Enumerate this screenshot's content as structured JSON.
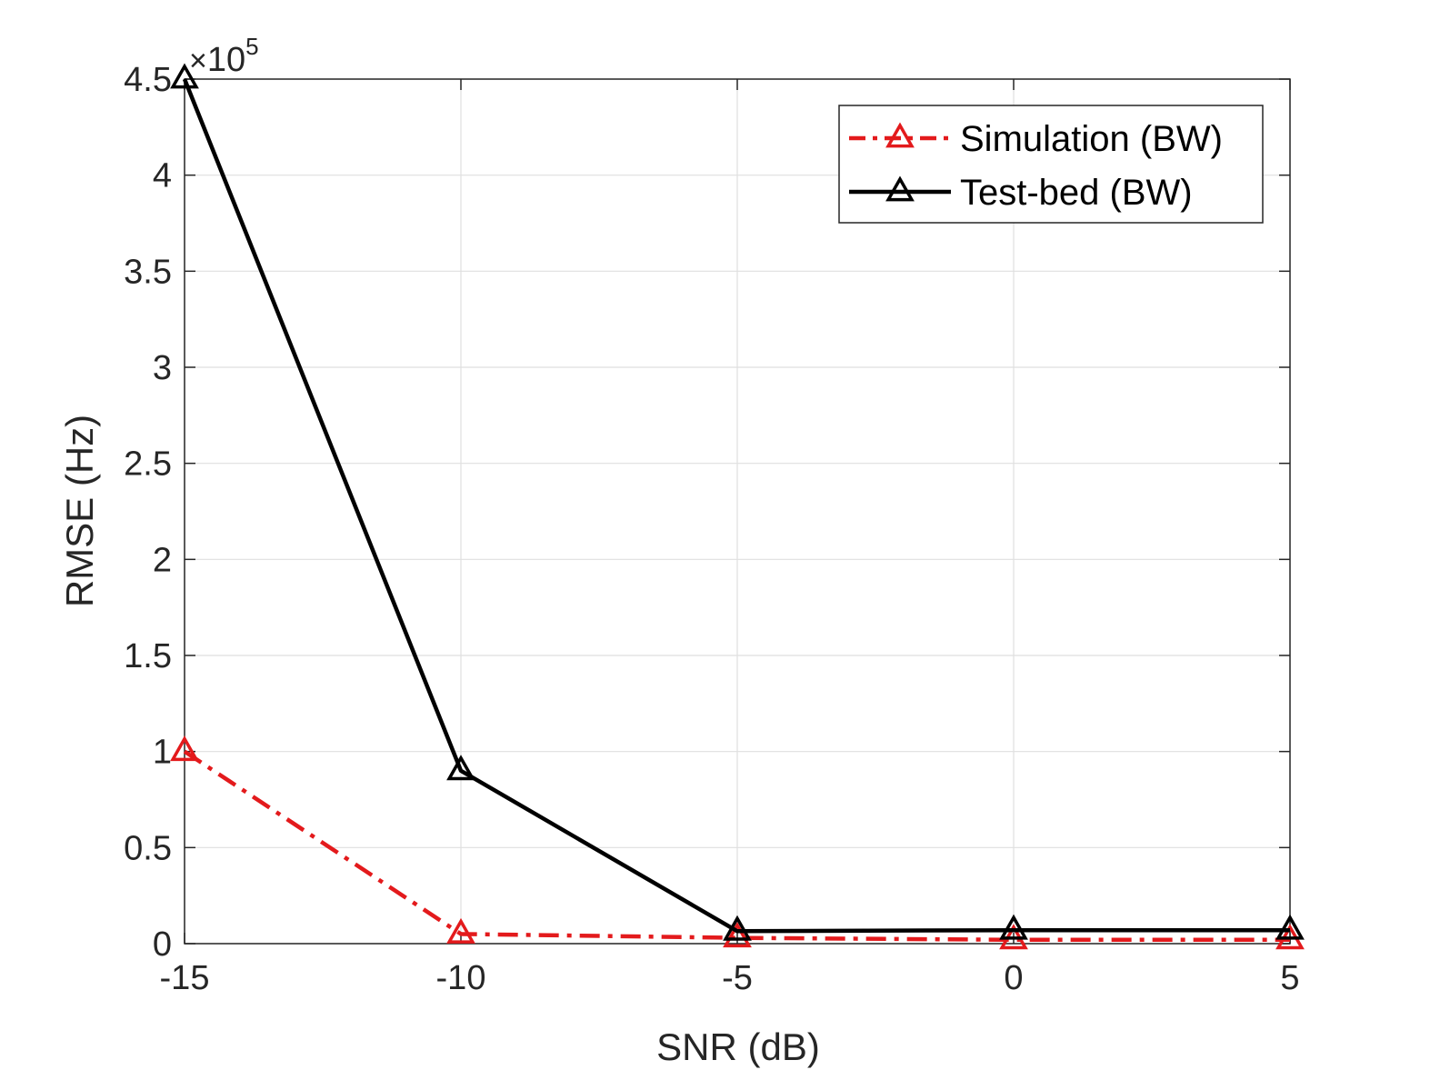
{
  "chart_data": {
    "type": "line",
    "xlabel": "SNR (dB)",
    "ylabel": "RMSE (Hz)",
    "x": [
      -15,
      -10,
      -5,
      0,
      5
    ],
    "xlim": [
      -15,
      5
    ],
    "ylim": [
      0,
      4.5
    ],
    "y_multiplier": {
      "times": "×",
      "base": "10",
      "exponent": "5"
    },
    "xticks": [
      -15,
      -10,
      -5,
      0,
      5
    ],
    "xtick_labels": [
      "-15",
      "-10",
      "-5",
      "0",
      "5"
    ],
    "yticks": [
      0,
      0.5,
      1,
      1.5,
      2,
      2.5,
      3,
      3.5,
      4,
      4.5
    ],
    "ytick_labels": [
      "0",
      "0.5",
      "1",
      "1.5",
      "2",
      "2.5",
      "3",
      "3.5",
      "4",
      "4.5"
    ],
    "grid": true,
    "legend_position": "top-right",
    "series": [
      {
        "name": "Simulation (BW)",
        "values": [
          1.0,
          0.05,
          0.03,
          0.02,
          0.02
        ],
        "color": "#e31a1c",
        "line_style": "dash-dot",
        "marker": "triangle"
      },
      {
        "name": "Test-bed (BW)",
        "values": [
          4.5,
          0.9,
          0.065,
          0.07,
          0.07
        ],
        "color": "#000000",
        "line_style": "solid",
        "marker": "triangle"
      }
    ]
  }
}
